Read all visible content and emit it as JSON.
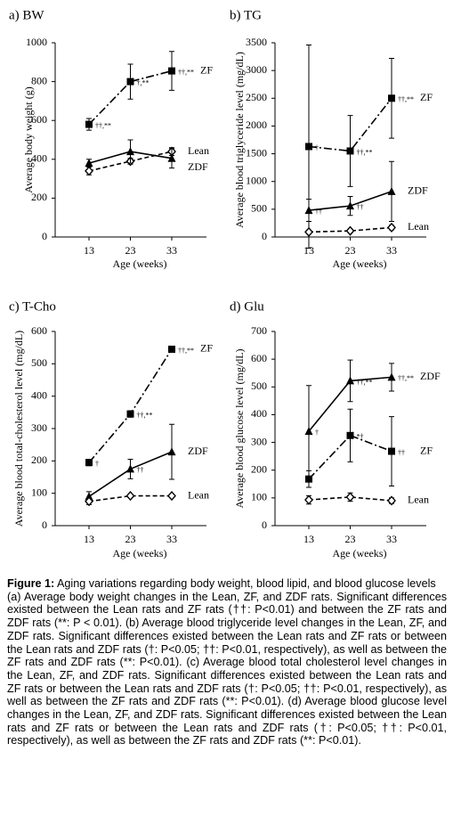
{
  "chart_data": [
    {
      "type": "line",
      "title": "a)  BW",
      "ylabel": "Average body weight (g)",
      "xlabel": "Age (weeks)",
      "categories": [
        "13",
        "23",
        "33"
      ],
      "ylim": [
        0,
        1000
      ],
      "yticks": [
        0,
        200,
        400,
        600,
        800,
        1000
      ],
      "grid": false,
      "series": [
        {
          "name": "ZF",
          "color": "#000000",
          "marker": "square",
          "dash": "dashdot",
          "values": [
            580,
            800,
            855
          ],
          "errors": [
            30,
            90,
            100
          ],
          "annotations": [
            "††,**",
            "†,**",
            "††,**"
          ]
        },
        {
          "name": "Lean",
          "color": "#000000",
          "marker": "diamond",
          "dash": "dashed",
          "values": [
            340,
            390,
            440
          ],
          "errors": [
            20,
            15,
            20
          ],
          "annotations": [
            null,
            null,
            null
          ]
        },
        {
          "name": "ZDF",
          "color": "#000000",
          "marker": "triangle",
          "dash": "solid",
          "values": [
            380,
            440,
            405
          ],
          "errors": [
            20,
            60,
            50
          ],
          "annotations": [
            null,
            null,
            null
          ]
        }
      ]
    },
    {
      "type": "line",
      "title": "b)  TG",
      "ylabel": "Average blood triglyceride level (mg/dL)",
      "xlabel": "Age (weeks)",
      "categories": [
        "13",
        "23",
        "33"
      ],
      "ylim": [
        0,
        3500
      ],
      "yticks": [
        0,
        500,
        1000,
        1500,
        2000,
        2500,
        3000,
        3500
      ],
      "grid": false,
      "series": [
        {
          "name": "ZF",
          "color": "#000000",
          "marker": "square",
          "dash": "dashdot",
          "values": [
            1630,
            1550,
            2500
          ],
          "errors": [
            1830,
            640,
            720
          ],
          "annotations": [
            "†",
            "††,**",
            "††,**"
          ]
        },
        {
          "name": "ZDF",
          "color": "#000000",
          "marker": "triangle",
          "dash": "solid",
          "values": [
            480,
            560,
            820
          ],
          "errors": [
            200,
            170,
            540
          ],
          "annotations": [
            "††",
            "††",
            null
          ]
        },
        {
          "name": "Lean",
          "color": "#000000",
          "marker": "diamond",
          "dash": "dashed",
          "values": [
            90,
            110,
            170
          ],
          "errors": [
            30,
            30,
            40
          ],
          "annotations": [
            null,
            null,
            null
          ]
        }
      ]
    },
    {
      "type": "line",
      "title": "c)  T-Cho",
      "ylabel": "Average blood total-cholesterol level (mg/dL)",
      "xlabel": "Age (weeks)",
      "categories": [
        "13",
        "23",
        "33"
      ],
      "ylim": [
        0,
        600
      ],
      "yticks": [
        0,
        100,
        200,
        300,
        400,
        500,
        600
      ],
      "grid": false,
      "series": [
        {
          "name": "ZF",
          "color": "#000000",
          "marker": "square",
          "dash": "dashdot",
          "values": [
            195,
            345,
            545
          ],
          "errors": [
            10,
            10,
            8
          ],
          "annotations": [
            "†",
            "††,**",
            "††,**"
          ]
        },
        {
          "name": "ZDF",
          "color": "#000000",
          "marker": "triangle",
          "dash": "solid",
          "values": [
            90,
            175,
            228
          ],
          "errors": [
            15,
            30,
            85
          ],
          "annotations": [
            null,
            "††",
            null
          ]
        },
        {
          "name": "Lean",
          "color": "#000000",
          "marker": "diamond",
          "dash": "dashed",
          "values": [
            75,
            92,
            92
          ],
          "errors": [
            10,
            5,
            5
          ],
          "annotations": [
            null,
            null,
            null
          ]
        }
      ]
    },
    {
      "type": "line",
      "title": "d)  Glu",
      "ylabel": "Average blood glucose level (mg/dL)",
      "xlabel": "Age (weeks)",
      "categories": [
        "13",
        "23",
        "33"
      ],
      "ylim": [
        0,
        700
      ],
      "yticks": [
        0,
        100,
        200,
        300,
        400,
        500,
        600,
        700
      ],
      "grid": false,
      "series": [
        {
          "name": "ZDF",
          "color": "#000000",
          "marker": "triangle",
          "dash": "solid",
          "values": [
            340,
            522,
            535
          ],
          "errors": [
            165,
            75,
            50
          ],
          "annotations": [
            "†",
            "††,**",
            "††,**"
          ]
        },
        {
          "name": "ZF",
          "color": "#000000",
          "marker": "square",
          "dash": "dashdot",
          "values": [
            168,
            325,
            268
          ],
          "errors": [
            30,
            95,
            125
          ],
          "annotations": [
            null,
            "*†",
            "††"
          ]
        },
        {
          "name": "Lean",
          "color": "#000000",
          "marker": "diamond",
          "dash": "dashed",
          "values": [
            93,
            103,
            90
          ],
          "errors": [
            15,
            15,
            10
          ],
          "annotations": [
            null,
            null,
            null
          ]
        }
      ]
    }
  ],
  "caption": {
    "label": "Figure 1:",
    "title": "Aging variations regarding body weight, blood lipid, and blood glucose levels",
    "body": "(a) Average body weight changes in the Lean, ZF, and ZDF rats. Significant differences existed between the Lean rats and ZF rats (††: P<0.01) and between the ZF rats and ZDF rats (**: P < 0.01). (b) Average blood triglyceride level changes in the Lean, ZF, and ZDF rats. Significant differences existed between the Lean rats and ZF rats or between the Lean rats and ZDF rats (†: P<0.05; ††: P<0.01, respectively), as well as between the ZF rats and ZDF rats (**: P<0.01). (c) Average blood total cholesterol level changes in the Lean, ZF, and ZDF rats. Significant differences existed between the Lean rats and ZF rats or between the Lean rats and ZDF rats (†: P<0.05; ††: P<0.01, respectively), as well as between the ZF rats and ZDF rats (**: P<0.01). (d) Average blood glucose level changes in the Lean, ZF, and ZDF rats. Significant differences existed between the Lean rats and ZF rats or between the Lean rats and ZDF rats (†: P<0.05; ††: P<0.01, respectively), as well as between the ZF rats and ZDF rats (**: P<0.01)."
  }
}
